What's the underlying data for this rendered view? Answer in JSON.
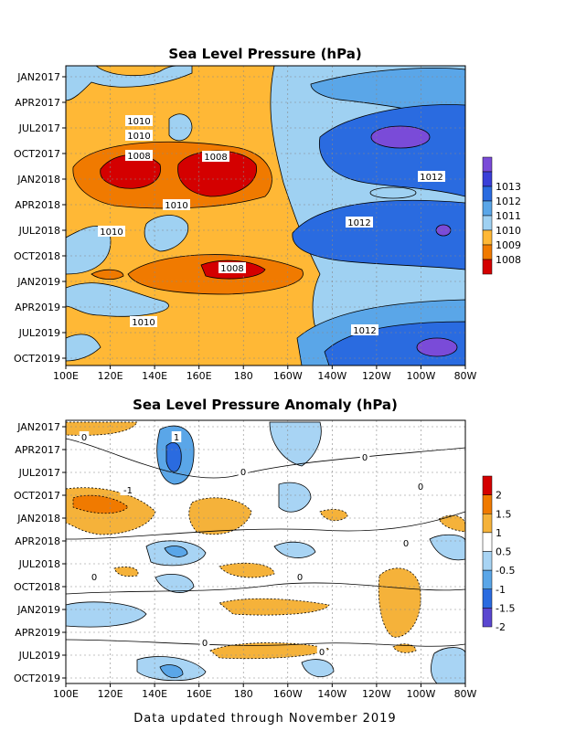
{
  "chart_data": [
    {
      "type": "heatmap",
      "title": "Sea Level Pressure (hPa)",
      "x_tick_labels": [
        "100E",
        "120E",
        "140E",
        "160E",
        "180",
        "160W",
        "140W",
        "120W",
        "100W",
        "80W"
      ],
      "y_tick_labels": [
        "JAN2017",
        "APR2017",
        "JUL2017",
        "OCT2017",
        "JAN2018",
        "APR2018",
        "JUL2018",
        "OCT2018",
        "JAN2019",
        "APR2019",
        "JUL2019",
        "OCT2019"
      ],
      "colorbar": {
        "labels": [
          "1008",
          "1009",
          "1010",
          "1011",
          "1012",
          "1013"
        ],
        "colors": [
          "#d40000",
          "#f07a00",
          "#ffb836",
          "#9fd1f2",
          "#5aa6e8",
          "#2a6be0",
          "#3a3fd8",
          "#7a4bd8"
        ]
      },
      "contour_labels": [
        "1010",
        "1010",
        "1008",
        "1008",
        "1010",
        "1010",
        "1008",
        "1010",
        "1012",
        "1012",
        "1012"
      ],
      "grid": true
    },
    {
      "type": "heatmap",
      "title": "Sea Level Pressure Anomaly (hPa)",
      "x_tick_labels": [
        "100E",
        "120E",
        "140E",
        "160E",
        "180",
        "160W",
        "140W",
        "120W",
        "100W",
        "80W"
      ],
      "y_tick_labels": [
        "JAN2017",
        "APR2017",
        "JUL2017",
        "OCT2017",
        "JAN2018",
        "APR2018",
        "JUL2018",
        "OCT2018",
        "JAN2019",
        "APR2019",
        "JUL2019",
        "OCT2019"
      ],
      "colorbar": {
        "labels": [
          "2",
          "1.5",
          "1",
          "0.5",
          "-0.5",
          "-1",
          "-1.5",
          "-2"
        ],
        "colors": [
          "#5a47d0",
          "#2a6be0",
          "#5aa6e8",
          "#a8d4f4",
          "#ffffff",
          "#f5b23a",
          "#f07a00",
          "#d40000"
        ]
      },
      "contour_labels": [
        "1",
        "0",
        "-1",
        "0",
        "0",
        "0",
        "0",
        "0",
        "0",
        "0",
        "0"
      ],
      "grid": true
    }
  ],
  "footer": "Data updated through November 2019"
}
